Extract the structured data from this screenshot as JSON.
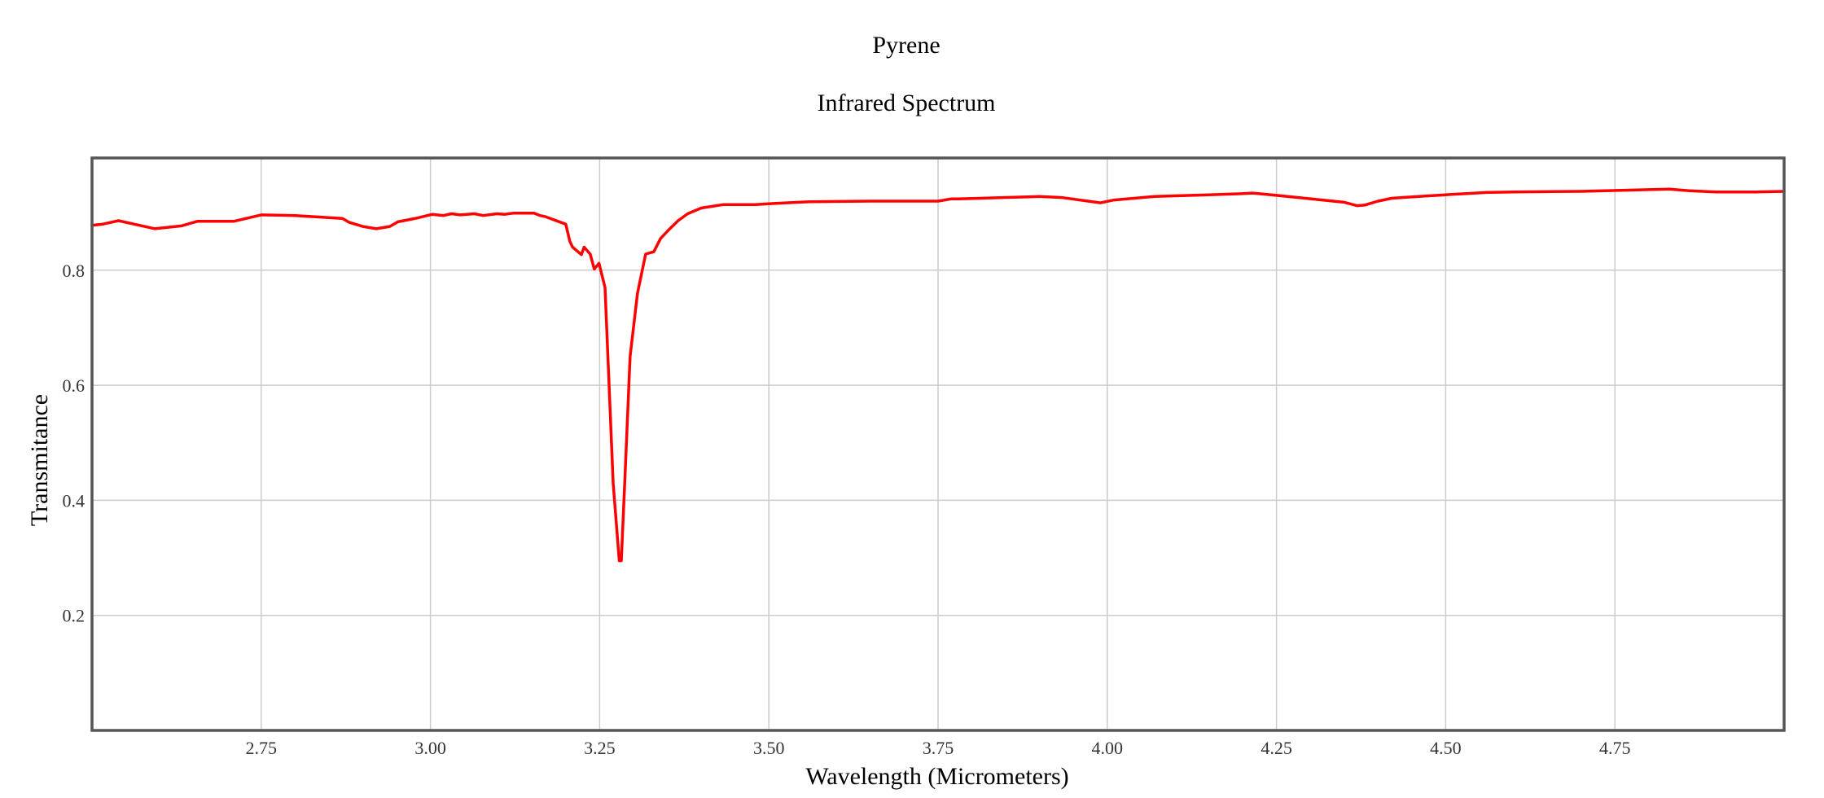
{
  "chart_data": {
    "type": "line",
    "title": "Pyrene",
    "subtitle": "Infrared Spectrum",
    "xlabel": "Wavelength (Micrometers)",
    "ylabel": "Transmitance",
    "xlim": [
      2.5,
      5.0
    ],
    "ylim": [
      0.0,
      0.995
    ],
    "xticks": [
      "2.75",
      "3.00",
      "3.25",
      "3.50",
      "3.75",
      "4.00",
      "4.25",
      "4.50",
      "4.75"
    ],
    "yticks": [
      "0.2",
      "0.4",
      "0.6",
      "0.8"
    ],
    "grid": true,
    "legend": "none",
    "colors": {
      "series": "#ff0000",
      "grid": "#cccccc",
      "frame": "#555555"
    },
    "series": [
      {
        "color": "#ff0000",
        "x": [
          2.5,
          2.516,
          2.539,
          2.57,
          2.593,
          2.632,
          2.656,
          2.71,
          2.75,
          2.8,
          2.84,
          2.87,
          2.88,
          2.9,
          2.92,
          2.94,
          2.952,
          2.978,
          3.003,
          3.019,
          3.031,
          3.044,
          3.065,
          3.078,
          3.098,
          3.11,
          3.122,
          3.153,
          3.162,
          3.17,
          3.2,
          3.206,
          3.21,
          3.223,
          3.227,
          3.236,
          3.242,
          3.249,
          3.258,
          3.27,
          3.279,
          3.282,
          3.287,
          3.295,
          3.306,
          3.318,
          3.33,
          3.34,
          3.352,
          3.366,
          3.38,
          3.4,
          3.433,
          3.48,
          3.51,
          3.56,
          3.65,
          3.75,
          3.77,
          3.78,
          3.9,
          3.935,
          3.99,
          4.01,
          4.07,
          4.15,
          4.2,
          4.215,
          4.25,
          4.35,
          4.369,
          4.38,
          4.4,
          4.42,
          4.46,
          4.5,
          4.56,
          4.6,
          4.7,
          4.8,
          4.83,
          4.86,
          4.9,
          4.96,
          5.0
        ],
        "y": [
          0.878,
          0.88,
          0.886,
          0.878,
          0.872,
          0.877,
          0.885,
          0.885,
          0.896,
          0.895,
          0.892,
          0.89,
          0.883,
          0.876,
          0.872,
          0.876,
          0.884,
          0.89,
          0.897,
          0.895,
          0.898,
          0.896,
          0.898,
          0.895,
          0.898,
          0.897,
          0.899,
          0.899,
          0.895,
          0.893,
          0.88,
          0.85,
          0.84,
          0.827,
          0.84,
          0.828,
          0.802,
          0.812,
          0.77,
          0.43,
          0.295,
          0.295,
          0.43,
          0.65,
          0.76,
          0.828,
          0.832,
          0.855,
          0.87,
          0.886,
          0.898,
          0.908,
          0.914,
          0.914,
          0.916,
          0.919,
          0.92,
          0.92,
          0.924,
          0.924,
          0.928,
          0.926,
          0.917,
          0.922,
          0.928,
          0.931,
          0.933,
          0.934,
          0.93,
          0.918,
          0.912,
          0.913,
          0.92,
          0.925,
          0.928,
          0.931,
          0.935,
          0.936,
          0.937,
          0.94,
          0.941,
          0.938,
          0.936,
          0.936,
          0.937
        ]
      }
    ]
  }
}
